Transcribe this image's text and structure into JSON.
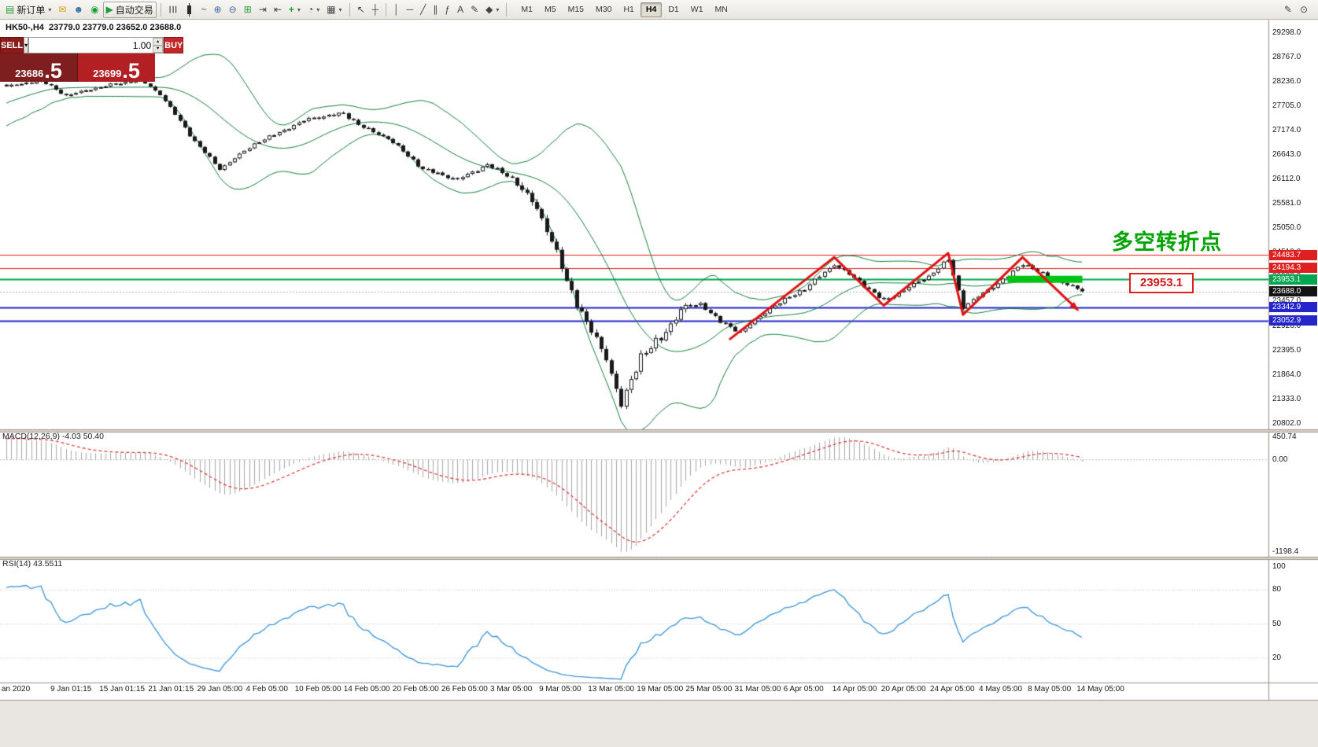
{
  "toolbar": {
    "new_order_label": "新订单",
    "autotrading_label": "自动交易",
    "timeframes": [
      "M1",
      "M5",
      "M15",
      "M30",
      "H1",
      "H4",
      "D1",
      "W1",
      "MN"
    ],
    "active_timeframe": "H4"
  },
  "chart": {
    "title": "HK50-,H4  23779.0 23779.0 23652.0 23688.0"
  },
  "trade_panel": {
    "sell_label": "SELL",
    "buy_label": "BUY",
    "volume": "1.00",
    "sell_price": "23686.5",
    "buy_price": "23699.5",
    "sell_price_main": "23686",
    "sell_price_frac": ".5",
    "buy_price_main": "23699",
    "buy_price_frac": ".5"
  },
  "indicators": {
    "macd_header": "MACD(12,26,9) -4.03 50.40",
    "rsi_header": "RSI(14) 43.5511"
  },
  "annotations": {
    "turning_point": "多空转折点",
    "price_box": "23953.1"
  },
  "axes": {
    "price_labels": [
      "29298.0",
      "28767.0",
      "28236.0",
      "27705.0",
      "27174.0",
      "26643.0",
      "26112.0",
      "25581.0",
      "25050.0",
      "24519.0",
      "23988.0",
      "23457.0",
      "22926.0",
      "22395.0",
      "21864.0",
      "21333.0",
      "20802.0"
    ],
    "time_labels": [
      "an 2020",
      "9 Jan 01:15",
      "15 Jan 01:15",
      "21 Jan 01:15",
      "29 Jan 05:00",
      "4 Feb 05:00",
      "10 Feb 05:00",
      "14 Feb 05:00",
      "20 Feb 05:00",
      "26 Feb 05:00",
      "3 Mar 05:00",
      "9 Mar 05:00",
      "13 Mar 05:00",
      "19 Mar 05:00",
      "25 Mar 05:00",
      "31 Mar 05:00",
      "6 Apr 05:00",
      "14 Apr 05:00",
      "20 Apr 05:00",
      "24 Apr 05:00",
      "4 May 05:00",
      "8 May 05:00",
      "14 May 05:00"
    ],
    "macd_labels": [
      "450.74",
      "0.00",
      "-1198.4"
    ],
    "rsi_labels": [
      "100",
      "80",
      "50",
      "20"
    ],
    "tags": [
      {
        "text": "24483.7",
        "price": 24483.7,
        "bg": "#e02020"
      },
      {
        "text": "24194.3",
        "price": 24194.3,
        "bg": "#e02020"
      },
      {
        "text": "23953.1",
        "price": 23953.1,
        "bg": "#00a650"
      },
      {
        "text": "23688.0",
        "price": 23688.0,
        "bg": "#141414"
      },
      {
        "text": "23342.9",
        "price": 23342.9,
        "bg": "#2525cc"
      },
      {
        "text": "23052.9",
        "price": 23052.9,
        "bg": "#2525cc"
      }
    ]
  },
  "chart_data": {
    "type": "candlestick",
    "symbol": "HK50-",
    "timeframe": "H4",
    "ohlc_last": {
      "open": 23779.0,
      "high": 23779.0,
      "low": 23652.0,
      "close": 23688.0
    },
    "bid": 23686.5,
    "ask": 23699.5,
    "price_axis_range": [
      20700,
      29450
    ],
    "candle_count": 218,
    "close_waypoints": [
      [
        0,
        28150
      ],
      [
        7,
        28280
      ],
      [
        12,
        27950
      ],
      [
        18,
        28120
      ],
      [
        27,
        28300
      ],
      [
        31,
        27980
      ],
      [
        38,
        26950
      ],
      [
        43,
        26350
      ],
      [
        50,
        26900
      ],
      [
        54,
        27100
      ],
      [
        61,
        27450
      ],
      [
        68,
        27560
      ],
      [
        72,
        27250
      ],
      [
        77,
        27020
      ],
      [
        84,
        26350
      ],
      [
        91,
        26120
      ],
      [
        97,
        26450
      ],
      [
        102,
        26150
      ],
      [
        107,
        25500
      ],
      [
        110,
        24800
      ],
      [
        113,
        23900
      ],
      [
        117,
        23000
      ],
      [
        121,
        22250
      ],
      [
        124,
        21200
      ],
      [
        128,
        22300
      ],
      [
        132,
        22650
      ],
      [
        136,
        23300
      ],
      [
        140,
        23420
      ],
      [
        144,
        23020
      ],
      [
        148,
        22800
      ],
      [
        154,
        23320
      ],
      [
        161,
        23750
      ],
      [
        167,
        24280
      ],
      [
        172,
        23900
      ],
      [
        177,
        23480
      ],
      [
        182,
        23780
      ],
      [
        186,
        24020
      ],
      [
        190,
        24380
      ],
      [
        193,
        23350
      ],
      [
        198,
        23720
      ],
      [
        202,
        24020
      ],
      [
        205,
        24300
      ],
      [
        209,
        24060
      ],
      [
        213,
        23880
      ],
      [
        217,
        23688
      ]
    ],
    "warmup": {
      "from": 26500,
      "to": 28150,
      "bars": 40
    },
    "overlays": {
      "bollinger": {
        "period": 20,
        "deviation": 2,
        "color": "#15803d"
      }
    },
    "macd": {
      "fast": 12,
      "slow": 26,
      "signal": 9,
      "value": -4.03,
      "signal_value": 50.4,
      "hist_color": "#a6a6a6",
      "signal_color": "#e03030"
    },
    "rsi": {
      "period": 14,
      "value": 43.5511,
      "color": "#3b95d8",
      "levels": [
        80,
        50,
        20
      ]
    },
    "levels": [
      {
        "price": 24483.7,
        "color": "#e02020",
        "width": 1,
        "style": "solid"
      },
      {
        "price": 24194.3,
        "color": "#e02020",
        "width": 1,
        "style": "solid"
      },
      {
        "price": 23953.1,
        "color": "#00a650",
        "width": 2,
        "style": "solid"
      },
      {
        "price": 23342.9,
        "color": "#2525cc",
        "width": 2,
        "style": "solid"
      },
      {
        "price": 23052.9,
        "color": "#2525cc",
        "width": 2,
        "style": "solid"
      },
      {
        "price": 23688.0,
        "color": "#b5b5b5",
        "width": 1,
        "style": "dot"
      }
    ],
    "trendlines": {
      "color": "#e01212",
      "width": 3,
      "zigzag_index_price": [
        [
          146,
          22650
        ],
        [
          167,
          24430
        ],
        [
          177,
          23380
        ],
        [
          190,
          24520
        ],
        [
          193,
          23180
        ],
        [
          205,
          24430
        ],
        [
          216,
          23300
        ]
      ]
    },
    "highlight_bar": {
      "start_index": 202,
      "width": 95,
      "price": 23950,
      "height": 9,
      "color": "#00c414"
    }
  }
}
